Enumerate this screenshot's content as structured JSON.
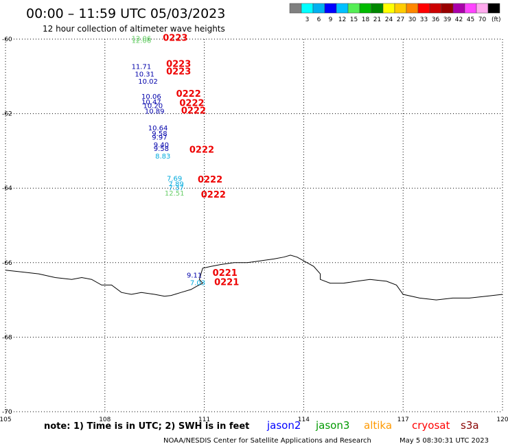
{
  "header": {
    "title": "00:00 – 11:59 UTC 05/03/2023",
    "subtitle": "12 hour collection of altimeter wave heights"
  },
  "legend": {
    "unit": "(ft)",
    "swatches": [
      {
        "color": "#808080",
        "label": ""
      },
      {
        "color": "#00ffff",
        "label": "3"
      },
      {
        "color": "#00b0f0",
        "label": "6"
      },
      {
        "color": "#0000ff",
        "label": "9"
      },
      {
        "color": "#00c0ff",
        "label": "12"
      },
      {
        "color": "#55ee55",
        "label": "15"
      },
      {
        "color": "#00bb00",
        "label": "18"
      },
      {
        "color": "#008800",
        "label": "21"
      },
      {
        "color": "#ffff00",
        "label": "24"
      },
      {
        "color": "#ffcc00",
        "label": "27"
      },
      {
        "color": "#ff8800",
        "label": "30"
      },
      {
        "color": "#ff0000",
        "label": "33"
      },
      {
        "color": "#cc0000",
        "label": "36"
      },
      {
        "color": "#990000",
        "label": "39"
      },
      {
        "color": "#aa00aa",
        "label": "42"
      },
      {
        "color": "#ff44ff",
        "label": "45"
      },
      {
        "color": "#ffaaee",
        "label": "70"
      },
      {
        "color": "#000000",
        "label": ""
      }
    ]
  },
  "axes": {
    "lon_ticks": [
      "105",
      "108",
      "111",
      "114",
      "117",
      "120"
    ],
    "lat_ticks": [
      "-60",
      "-62",
      "-64",
      "-66",
      "-68",
      "-70"
    ]
  },
  "chart_data": {
    "type": "scatter",
    "xlim": [
      105,
      120
    ],
    "ylim": [
      -70,
      -60
    ],
    "grid": true,
    "observations": [
      {
        "lon": 109.1,
        "lat": -60.05,
        "value": "12.06",
        "color": "#66cc66"
      },
      {
        "lon": 109.1,
        "lat": -60.1,
        "value": "12.06",
        "color": "#66cc66"
      },
      {
        "lon": 109.1,
        "lat": -60.8,
        "value": "11.71",
        "color": "#0000aa"
      },
      {
        "lon": 109.2,
        "lat": -61.0,
        "value": "10.31",
        "color": "#0000aa"
      },
      {
        "lon": 109.3,
        "lat": -61.2,
        "value": "10.02",
        "color": "#0000aa"
      },
      {
        "lon": 109.4,
        "lat": -61.6,
        "value": "10.06",
        "color": "#0000aa"
      },
      {
        "lon": 109.4,
        "lat": -61.75,
        "value": "10.47",
        "color": "#0000aa"
      },
      {
        "lon": 109.45,
        "lat": -61.85,
        "value": "10.20",
        "color": "#0000aa"
      },
      {
        "lon": 109.5,
        "lat": -62.0,
        "value": "10.89",
        "color": "#0000aa"
      },
      {
        "lon": 109.6,
        "lat": -62.45,
        "value": "10.64",
        "color": "#0000aa"
      },
      {
        "lon": 109.65,
        "lat": -62.6,
        "value": "9.58",
        "color": "#0000aa"
      },
      {
        "lon": 109.65,
        "lat": -62.7,
        "value": "9.97",
        "color": "#0000aa"
      },
      {
        "lon": 109.7,
        "lat": -62.9,
        "value": "9.40",
        "color": "#0000aa"
      },
      {
        "lon": 109.7,
        "lat": -63.0,
        "value": "9.58",
        "color": "#0000aa"
      },
      {
        "lon": 109.75,
        "lat": -63.2,
        "value": "8.83",
        "color": "#00aadd"
      },
      {
        "lon": 110.1,
        "lat": -63.8,
        "value": "7.69",
        "color": "#00aadd"
      },
      {
        "lon": 110.15,
        "lat": -63.95,
        "value": "7.89",
        "color": "#00aadd"
      },
      {
        "lon": 110.15,
        "lat": -64.05,
        "value": "7.37",
        "color": "#00aadd"
      },
      {
        "lon": 110.1,
        "lat": -64.2,
        "value": "12.51",
        "color": "#66cc66"
      },
      {
        "lon": 110.7,
        "lat": -66.4,
        "value": "9.11",
        "color": "#0000aa"
      },
      {
        "lon": 110.8,
        "lat": -66.6,
        "value": "7.03",
        "color": "#00aadd"
      }
    ],
    "pass_labels": [
      {
        "lon": 109.75,
        "lat": -60.05,
        "text": "0223"
      },
      {
        "lon": 109.85,
        "lat": -60.75,
        "text": "0223"
      },
      {
        "lon": 109.85,
        "lat": -60.95,
        "text": "0223"
      },
      {
        "lon": 110.15,
        "lat": -61.55,
        "text": "0222"
      },
      {
        "lon": 110.25,
        "lat": -61.8,
        "text": "0222"
      },
      {
        "lon": 110.3,
        "lat": -62.0,
        "text": "0222"
      },
      {
        "lon": 110.55,
        "lat": -63.05,
        "text": "0222"
      },
      {
        "lon": 110.8,
        "lat": -63.85,
        "text": "0222"
      },
      {
        "lon": 110.9,
        "lat": -64.25,
        "text": "0222"
      },
      {
        "lon": 111.25,
        "lat": -66.35,
        "text": "0221"
      },
      {
        "lon": 111.3,
        "lat": -66.6,
        "text": "0221"
      }
    ],
    "coastline": [
      [
        105.0,
        -66.2
      ],
      [
        105.5,
        -66.25
      ],
      [
        106.0,
        -66.3
      ],
      [
        106.5,
        -66.4
      ],
      [
        107.0,
        -66.45
      ],
      [
        107.3,
        -66.4
      ],
      [
        107.6,
        -66.45
      ],
      [
        107.9,
        -66.6
      ],
      [
        108.2,
        -66.6
      ],
      [
        108.5,
        -66.8
      ],
      [
        108.8,
        -66.85
      ],
      [
        109.1,
        -66.8
      ],
      [
        109.5,
        -66.85
      ],
      [
        109.8,
        -66.9
      ],
      [
        110.0,
        -66.88
      ],
      [
        110.3,
        -66.8
      ],
      [
        110.6,
        -66.72
      ],
      [
        110.8,
        -66.62
      ],
      [
        110.95,
        -66.55
      ],
      [
        110.85,
        -66.45
      ],
      [
        110.9,
        -66.3
      ],
      [
        110.95,
        -66.15
      ],
      [
        111.2,
        -66.1
      ],
      [
        111.5,
        -66.05
      ],
      [
        111.9,
        -66.0
      ],
      [
        112.3,
        -66.0
      ],
      [
        112.7,
        -65.95
      ],
      [
        113.1,
        -65.9
      ],
      [
        113.4,
        -65.85
      ],
      [
        113.6,
        -65.8
      ],
      [
        113.8,
        -65.85
      ],
      [
        114.0,
        -65.95
      ],
      [
        114.3,
        -66.1
      ],
      [
        114.5,
        -66.3
      ],
      [
        114.5,
        -66.45
      ],
      [
        114.8,
        -66.55
      ],
      [
        115.2,
        -66.55
      ],
      [
        115.6,
        -66.5
      ],
      [
        116.0,
        -66.45
      ],
      [
        116.5,
        -66.5
      ],
      [
        116.8,
        -66.6
      ],
      [
        117.0,
        -66.85
      ],
      [
        117.5,
        -66.95
      ],
      [
        118.0,
        -67.0
      ],
      [
        118.5,
        -66.95
      ],
      [
        119.0,
        -66.95
      ],
      [
        119.5,
        -66.9
      ],
      [
        120.0,
        -66.85
      ]
    ]
  },
  "footer": {
    "note": "note: 1) Time is in UTC; 2) SWH is in feet",
    "satellites": [
      {
        "name": "jason2",
        "color": "#0000ff"
      },
      {
        "name": "jason3",
        "color": "#009900"
      },
      {
        "name": "altika",
        "color": "#ff9900"
      },
      {
        "name": "cryosat",
        "color": "#ff0000"
      },
      {
        "name": "s3a",
        "color": "#880000"
      }
    ],
    "credit": "NOAA/NESDIS Center for Satellite Applications and Research",
    "timestamp": "May  5 08:30:31 UTC 2023"
  }
}
